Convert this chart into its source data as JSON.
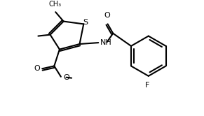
{
  "background_color": "#ffffff",
  "bond_color": "#000000",
  "lw": 1.5,
  "atoms": {
    "S": "#000000",
    "N": "#000000",
    "O": "#000000",
    "F": "#000000",
    "C": "#000000"
  }
}
